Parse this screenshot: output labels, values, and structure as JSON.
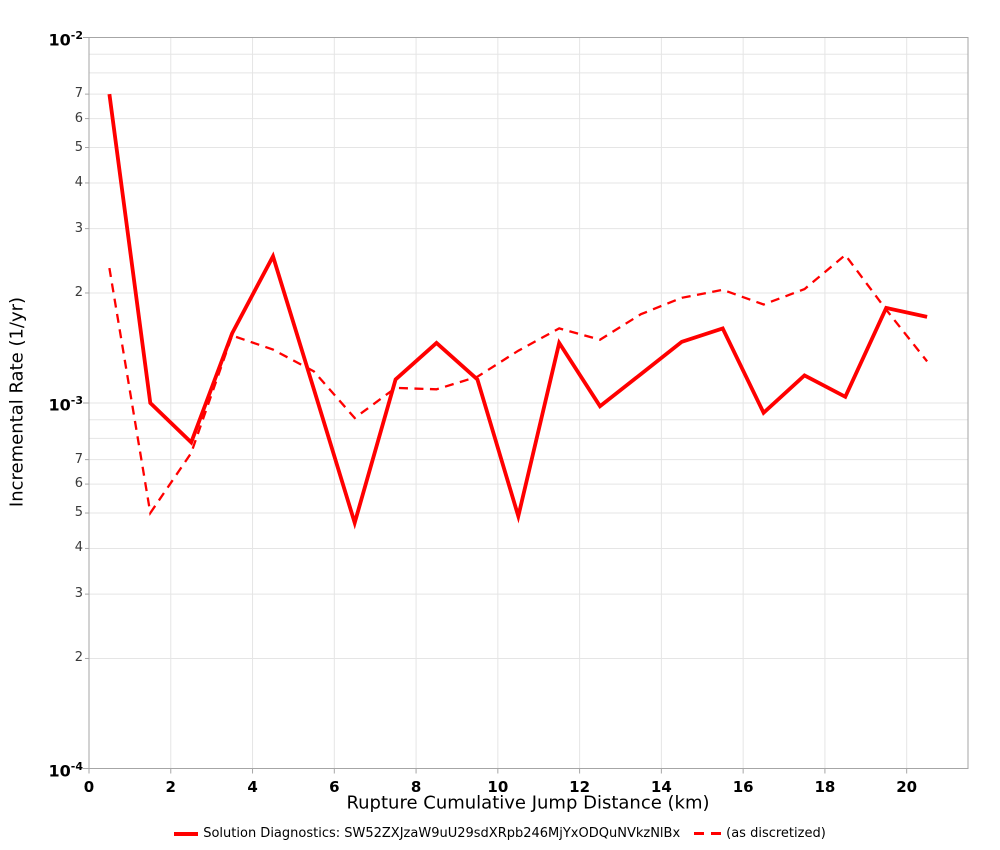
{
  "chart_data": {
    "type": "line",
    "title": "",
    "xlabel": "Rupture Cumulative Jump Distance (km)",
    "ylabel": "Incremental Rate (1/yr)",
    "xlim": [
      0,
      21.5
    ],
    "ylim": [
      0.0001,
      0.01
    ],
    "y_scale": "log",
    "grid": true,
    "legend_position": "bottom-center",
    "colors": {
      "line": "#ff0000",
      "grid": "#e5e5e5",
      "frame": "#a6a6a6"
    },
    "x": [
      0.5,
      1.5,
      2.5,
      3.5,
      4.5,
      5.5,
      6.5,
      7.5,
      8.5,
      9.5,
      10.5,
      11.5,
      12.5,
      13.5,
      14.5,
      15.5,
      16.5,
      17.5,
      18.5,
      19.5,
      20.5
    ],
    "series": [
      {
        "name": "Solution Diagnostics: SW52ZXJzaW9uU29sdXRpb246MjYxODQuNVkzNlBx",
        "style": "solid",
        "values": [
          0.007,
          0.001,
          0.00078,
          0.00155,
          0.00252,
          0.00109,
          0.00047,
          0.00116,
          0.00146,
          0.00116,
          0.00049,
          0.00146,
          0.00098,
          0.0012,
          0.00147,
          0.0016,
          0.00094,
          0.00119,
          0.00104,
          0.00182,
          0.00172
        ]
      },
      {
        "name": "(as discretized)",
        "style": "dashed",
        "values": [
          0.00234,
          0.0005,
          0.00073,
          0.00153,
          0.0014,
          0.00122,
          0.00091,
          0.0011,
          0.00109,
          0.00118,
          0.00139,
          0.0016,
          0.00149,
          0.00175,
          0.00194,
          0.00204,
          0.00186,
          0.00205,
          0.00254,
          0.0018,
          0.0013
        ]
      }
    ],
    "x_ticks": [
      {
        "value": 0,
        "label": "0"
      },
      {
        "value": 2,
        "label": "2"
      },
      {
        "value": 4,
        "label": "4"
      },
      {
        "value": 6,
        "label": "6"
      },
      {
        "value": 8,
        "label": "8"
      },
      {
        "value": 10,
        "label": "10"
      },
      {
        "value": 12,
        "label": "12"
      },
      {
        "value": 14,
        "label": "14"
      },
      {
        "value": 16,
        "label": "16"
      },
      {
        "value": 18,
        "label": "18"
      },
      {
        "value": 20,
        "label": "20"
      }
    ],
    "y_ticks": [
      {
        "value": 0.01,
        "label": "10",
        "exp": "-2",
        "major": true
      },
      {
        "value": 0.009,
        "label": ""
      },
      {
        "value": 0.008,
        "label": ""
      },
      {
        "value": 0.007,
        "label": "7"
      },
      {
        "value": 0.006,
        "label": "6"
      },
      {
        "value": 0.005,
        "label": "5"
      },
      {
        "value": 0.004,
        "label": "4"
      },
      {
        "value": 0.003,
        "label": "3"
      },
      {
        "value": 0.002,
        "label": "2"
      },
      {
        "value": 0.001,
        "label": "10",
        "exp": "-3",
        "major": true
      },
      {
        "value": 0.0009,
        "label": ""
      },
      {
        "value": 0.0008,
        "label": ""
      },
      {
        "value": 0.0007,
        "label": "7"
      },
      {
        "value": 0.0006,
        "label": "6"
      },
      {
        "value": 0.0005,
        "label": "5"
      },
      {
        "value": 0.0004,
        "label": "4"
      },
      {
        "value": 0.0003,
        "label": "3"
      },
      {
        "value": 0.0002,
        "label": "2"
      },
      {
        "value": 0.0001,
        "label": "10",
        "exp": "-4",
        "major": true
      }
    ]
  },
  "legend": {
    "series1_label": "Solution Diagnostics: SW52ZXJzaW9uU29sdXRpb246MjYxODQuNVkzNlBx",
    "series2_label": "(as discretized)"
  }
}
